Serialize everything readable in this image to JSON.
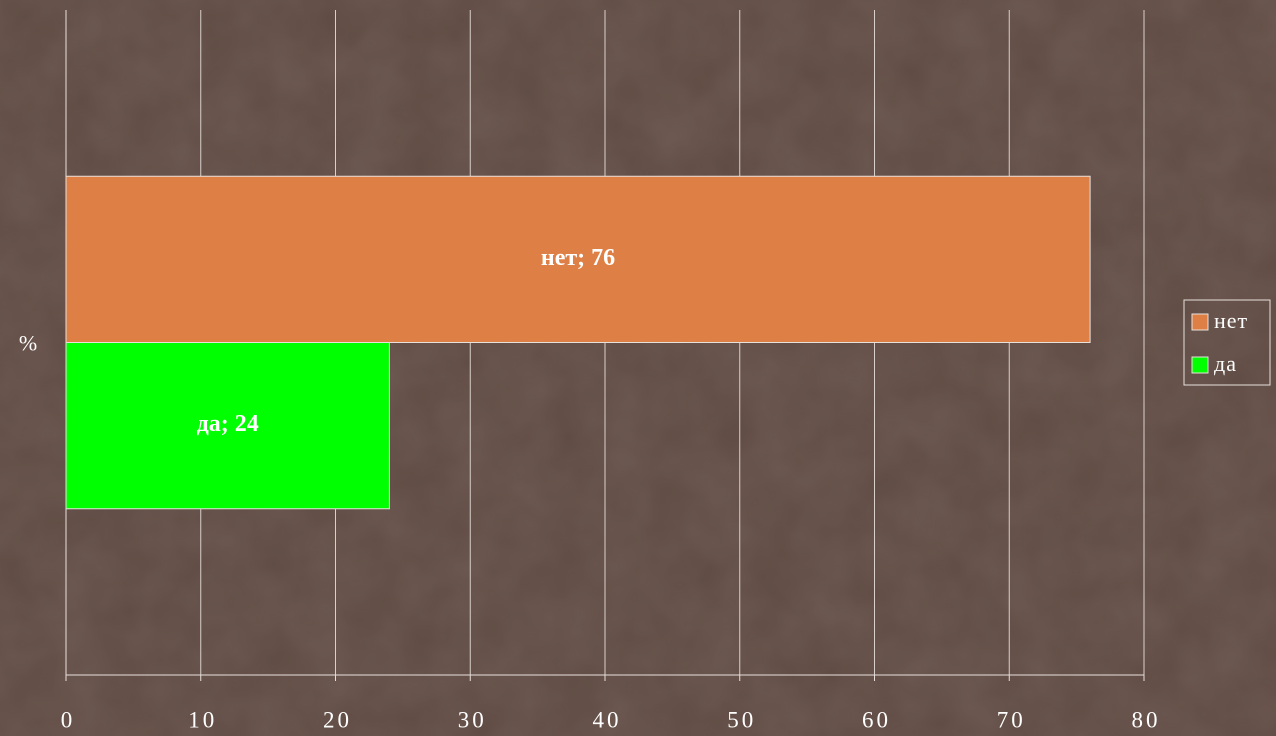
{
  "chart_data": {
    "type": "hbar",
    "categories": [
      "%"
    ],
    "series": [
      {
        "name": "нет",
        "color": "#de7f45",
        "values": [
          76
        ],
        "value_labels": [
          "нет; 76"
        ]
      },
      {
        "name": "да",
        "color": "#00ff00",
        "values": [
          24
        ],
        "value_labels": [
          "да; 24"
        ]
      }
    ],
    "xlim": [
      0,
      80
    ],
    "xticks": [
      0,
      10,
      20,
      30,
      40,
      50,
      60,
      70,
      80
    ],
    "grid": true,
    "legend": "right"
  }
}
